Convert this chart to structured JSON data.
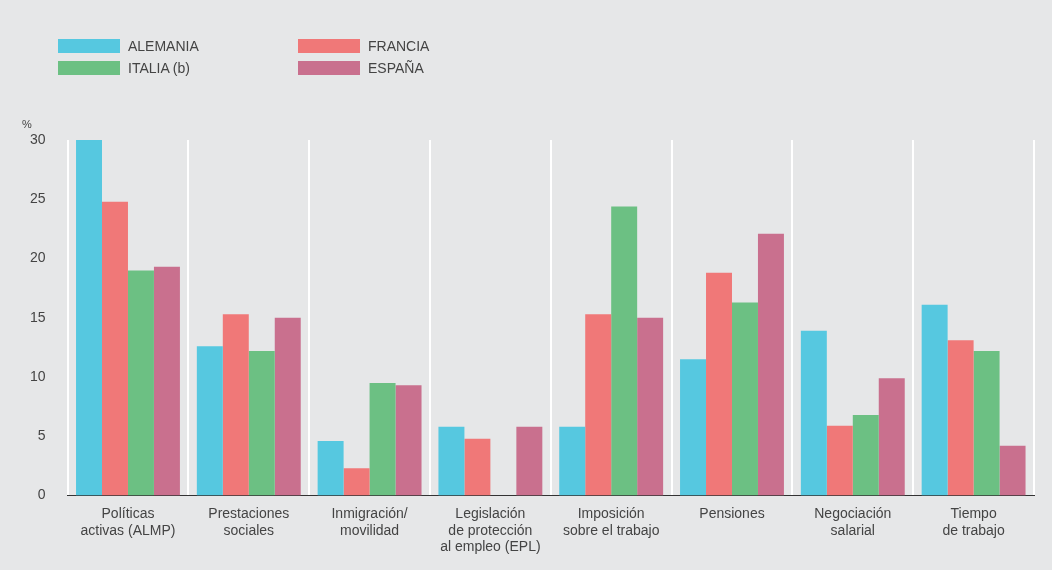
{
  "chart_data": {
    "type": "bar",
    "ylabel": "%",
    "categories": [
      "Políticas\nactivas (ALMP)",
      "Prestaciones\nsociales",
      "Inmigración/\nmovilidad",
      "Legislación\nde protección\nal empleo (EPL)",
      "Imposición\nsobre el trabajo",
      "Pensiones",
      "Negociación\nsalarial",
      "Tiempo\nde trabajo"
    ],
    "series": [
      {
        "name": "ALEMANIA",
        "color": "#56c8e0",
        "values": [
          30,
          12.6,
          4.6,
          5.8,
          5.8,
          11.5,
          13.9,
          16.1
        ]
      },
      {
        "name": "FRANCIA",
        "color": "#f07878",
        "values": [
          24.8,
          15.3,
          2.3,
          4.8,
          15.3,
          18.8,
          5.9,
          13.1
        ]
      },
      {
        "name": "ITALIA (b)",
        "color": "#6cc083",
        "values": [
          19,
          12.2,
          9.5,
          null,
          24.4,
          16.3,
          6.8,
          12.2
        ]
      },
      {
        "name": "ESPAÑA",
        "color": "#c9708e",
        "values": [
          19.3,
          15,
          9.3,
          5.8,
          15,
          22.1,
          9.9,
          4.2
        ]
      }
    ],
    "ylim": [
      0,
      30
    ],
    "yticks": [
      0,
      5,
      10,
      15,
      20,
      25,
      30
    ],
    "grid": "x",
    "legend": "top left"
  }
}
